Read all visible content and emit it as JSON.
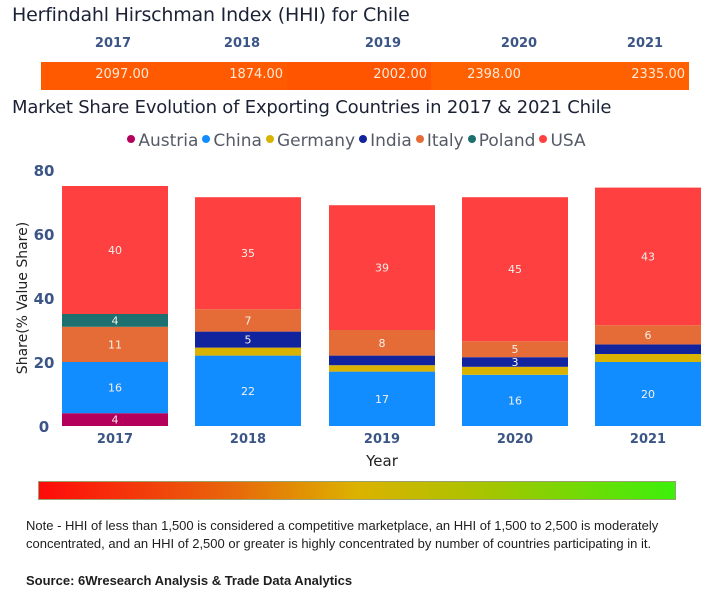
{
  "hhi": {
    "title": "Herfindahl Hirschman Index (HHI) for Chile",
    "years": [
      "2017",
      "2018",
      "2019",
      "2020",
      "2021"
    ],
    "values": [
      "2097.00",
      "1874.00",
      "2002.00",
      "2398.00",
      "2335.00"
    ],
    "bar_color": "#ff5a00"
  },
  "chart_data": {
    "type": "bar",
    "stacked": true,
    "title": "Market Share Evolution of Exporting Countries in 2017 & 2021 Chile",
    "xlabel": "Year",
    "ylabel": "Share(% Value Share)",
    "ylim": [
      0,
      80
    ],
    "yticks": [
      "0",
      "20",
      "40",
      "60",
      "80"
    ],
    "categories": [
      "2017",
      "2018",
      "2019",
      "2020",
      "2021"
    ],
    "legend_position": "top-center",
    "series": [
      {
        "name": "Austria",
        "color": "#b5005b",
        "values": [
          4,
          0,
          0,
          0,
          0
        ],
        "labels": [
          "4",
          "",
          "",
          "",
          ""
        ]
      },
      {
        "name": "China",
        "color": "#118dff",
        "values": [
          16,
          22,
          17,
          16,
          20
        ],
        "labels": [
          "16",
          "22",
          "17",
          "16",
          "20"
        ]
      },
      {
        "name": "Germany",
        "color": "#d9b300",
        "values": [
          0,
          2.5,
          2,
          2.5,
          2.5
        ],
        "labels": [
          "",
          "",
          "",
          "",
          ""
        ]
      },
      {
        "name": "India",
        "color": "#12239e",
        "values": [
          0,
          5,
          3,
          3,
          3
        ],
        "labels": [
          "",
          "5",
          "",
          "3",
          ""
        ]
      },
      {
        "name": "Italy",
        "color": "#e66c37",
        "values": [
          11,
          7,
          8,
          5,
          6
        ],
        "labels": [
          "11",
          "7",
          "8",
          "5",
          "6"
        ]
      },
      {
        "name": "Poland",
        "color": "#1c7070",
        "values": [
          4,
          0,
          0,
          0,
          0
        ],
        "labels": [
          "4",
          "",
          "",
          "",
          ""
        ]
      },
      {
        "name": "USA",
        "color": "#ff4040",
        "values": [
          40,
          35,
          39,
          45,
          43
        ],
        "labels": [
          "40",
          "35",
          "39",
          "45",
          "43"
        ]
      }
    ]
  },
  "note": "Note - HHI of less than 1,500 is considered a competitive marketplace, an HHI of 1,500 to 2,500 is moderately concentrated, and an HHI of 2,500 or greater is highly concentrated by number of countries participating in it.",
  "source": "Source: 6Wresearch Analysis & Trade Data Analytics"
}
